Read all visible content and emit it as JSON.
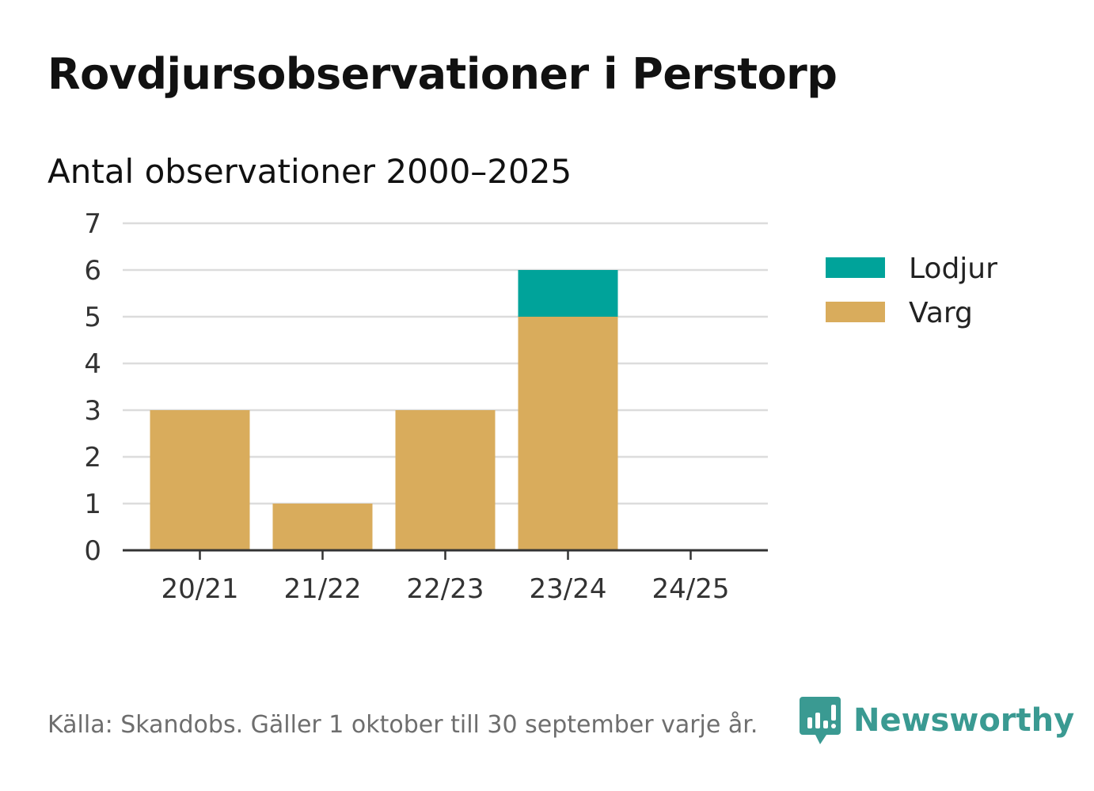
{
  "title": "Rovdjursobservationer i Perstorp",
  "subtitle": "Antal observationer 2000–2025",
  "footer": {
    "source": "Källa: Skandobs. Gäller 1 oktober till 30 september varje år.",
    "brand": "Newsworthy",
    "brand_icon": "chart-bars-speech-bubble-icon"
  },
  "chart_data": {
    "type": "bar",
    "stacked": true,
    "categories": [
      "20/21",
      "21/22",
      "22/23",
      "23/24",
      "24/25"
    ],
    "series": [
      {
        "name": "Varg",
        "color": "#d9ac5c",
        "values": [
          3,
          1,
          3,
          5,
          0
        ]
      },
      {
        "name": "Lodjur",
        "color": "#00a39a",
        "values": [
          0,
          0,
          0,
          1,
          0
        ]
      }
    ],
    "ylim": [
      0,
      7
    ],
    "yticks": [
      0,
      1,
      2,
      3,
      4,
      5,
      6,
      7
    ],
    "grid": true,
    "legend_position": "right",
    "legend_order": [
      "Lodjur",
      "Varg"
    ]
  }
}
